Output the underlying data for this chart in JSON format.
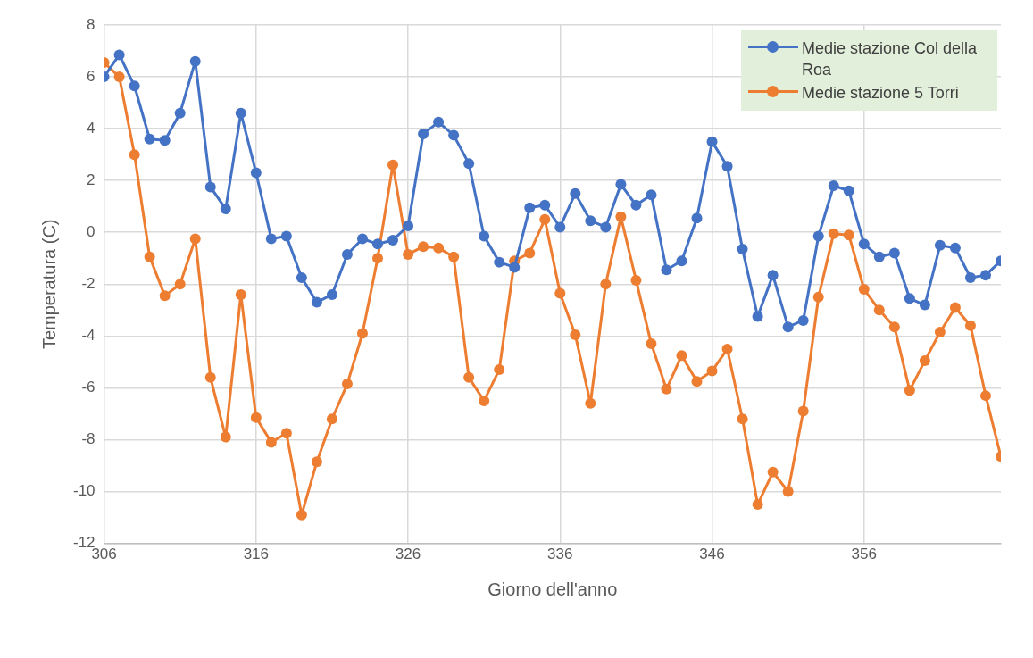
{
  "chart_data": {
    "type": "line",
    "xlabel": "Giorno dell'anno",
    "ylabel": "Temperatura (C)",
    "x": [
      306,
      307,
      308,
      309,
      310,
      311,
      312,
      313,
      314,
      315,
      316,
      317,
      318,
      319,
      320,
      321,
      322,
      323,
      324,
      325,
      326,
      327,
      328,
      329,
      330,
      331,
      332,
      333,
      334,
      335,
      336,
      337,
      338,
      339,
      340,
      341,
      342,
      343,
      344,
      345,
      346,
      347,
      348,
      349,
      350,
      351,
      352,
      353,
      354,
      355,
      356,
      357,
      358,
      359,
      360,
      361,
      362,
      363,
      364,
      365
    ],
    "series": [
      {
        "name": "Medie stazione Col della Roa",
        "color": "#4472c4",
        "values": [
          6.0,
          6.85,
          5.65,
          3.6,
          3.55,
          4.6,
          6.6,
          1.75,
          0.9,
          4.6,
          2.3,
          -0.25,
          -0.15,
          -1.75,
          -2.7,
          -2.4,
          -0.85,
          -0.25,
          -0.45,
          -0.3,
          0.25,
          3.8,
          4.25,
          3.75,
          2.65,
          -0.15,
          -1.15,
          -1.35,
          0.95,
          1.05,
          0.2,
          1.5,
          0.45,
          0.2,
          1.85,
          1.05,
          1.45,
          -1.45,
          -1.1,
          0.55,
          3.5,
          2.55,
          -0.65,
          -3.25,
          -1.65,
          -3.65,
          -3.4,
          -0.15,
          1.8,
          1.6,
          -0.45,
          -0.95,
          -0.8,
          -2.55,
          -2.8,
          -0.5,
          -0.6,
          -1.75,
          -1.65,
          -1.1
        ]
      },
      {
        "name": "Medie stazione 5 Torri",
        "color": "#ed7d31",
        "values": [
          6.55,
          6.0,
          3.0,
          -0.95,
          -2.45,
          -2.0,
          -0.25,
          -5.6,
          -7.9,
          -2.4,
          -7.15,
          -8.1,
          -7.75,
          -10.9,
          -8.85,
          -7.2,
          -5.85,
          -3.9,
          -1.0,
          2.6,
          -0.85,
          -0.55,
          -0.6,
          -0.95,
          -5.6,
          -6.5,
          -5.3,
          -1.1,
          -0.8,
          0.5,
          -2.35,
          -3.95,
          -6.6,
          -2.0,
          0.6,
          -1.85,
          -4.3,
          -6.05,
          -4.75,
          -5.75,
          -5.35,
          -4.5,
          -7.2,
          -10.5,
          -9.25,
          -10.0,
          -6.9,
          -2.5,
          -0.05,
          -0.1,
          -2.2,
          -3.0,
          -3.65,
          -6.1,
          -4.95,
          -3.85,
          -2.9,
          -3.6,
          -6.3,
          -8.65
        ]
      }
    ],
    "xlim": [
      306,
      365
    ],
    "xticks": [
      306,
      316,
      326,
      336,
      346,
      356
    ],
    "ylim": [
      -12,
      8
    ],
    "yticks": [
      -12,
      -10,
      -8,
      -6,
      -4,
      -2,
      0,
      2,
      4,
      6,
      8
    ],
    "grid": true,
    "legend": "top right",
    "marker": "circle",
    "line_style": "solid"
  }
}
